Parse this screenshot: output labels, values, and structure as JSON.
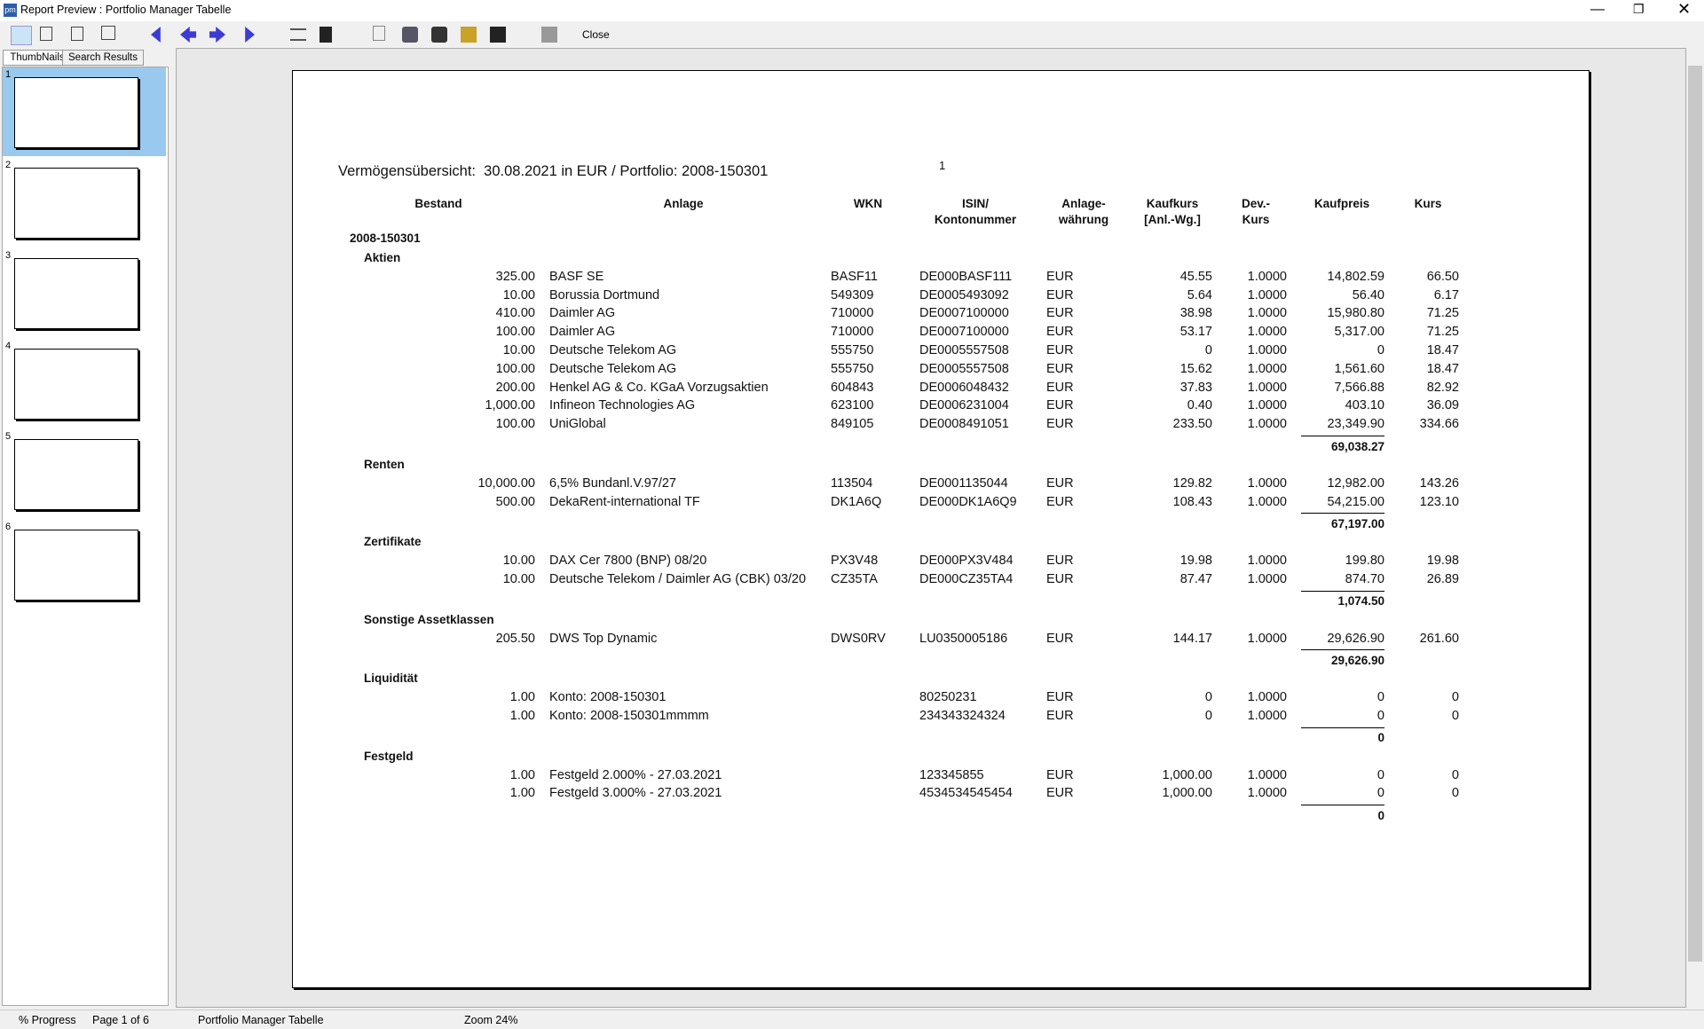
{
  "window": {
    "title": "Report Preview : Portfolio Manager Tabelle"
  },
  "toolbar": {
    "close": "Close"
  },
  "sidebar": {
    "tabs": [
      "ThumbNails",
      "Search Results"
    ],
    "pages": [
      "1",
      "2",
      "3",
      "4",
      "5",
      "6"
    ]
  },
  "report": {
    "title": "Vermögensübersicht:  30.08.2021 in EUR / Portfolio: 2008-150301",
    "page_number": "1",
    "headers": [
      [
        "Bestand"
      ],
      [
        "Anlage"
      ],
      [
        "WKN"
      ],
      [
        "ISIN/",
        "Kontonummer"
      ],
      [
        "Anlage-",
        "währung"
      ],
      [
        "Kaufkurs",
        "[Anl.-Wg.]"
      ],
      [
        "Dev.-",
        "Kurs"
      ],
      [
        "Kaufpreis"
      ],
      [
        "Kurs"
      ]
    ],
    "portfolio": "2008-150301",
    "groups": [
      {
        "name": "Aktien",
        "rows": [
          {
            "bestand": "325.00",
            "anlage": "BASF SE",
            "wkn": "BASF11",
            "isin": "DE000BASF111",
            "waehrung": "EUR",
            "kaufkurs": "45.55",
            "devkurs": "1.0000",
            "kaufpreis": "14,802.59",
            "kurs": "66.50"
          },
          {
            "bestand": "10.00",
            "anlage": "Borussia Dortmund",
            "wkn": "549309",
            "isin": "DE0005493092",
            "waehrung": "EUR",
            "kaufkurs": "5.64",
            "devkurs": "1.0000",
            "kaufpreis": "56.40",
            "kurs": "6.17"
          },
          {
            "bestand": "410.00",
            "anlage": "Daimler AG",
            "wkn": "710000",
            "isin": "DE0007100000",
            "waehrung": "EUR",
            "kaufkurs": "38.98",
            "devkurs": "1.0000",
            "kaufpreis": "15,980.80",
            "kurs": "71.25"
          },
          {
            "bestand": "100.00",
            "anlage": "Daimler AG",
            "wkn": "710000",
            "isin": "DE0007100000",
            "waehrung": "EUR",
            "kaufkurs": "53.17",
            "devkurs": "1.0000",
            "kaufpreis": "5,317.00",
            "kurs": "71.25"
          },
          {
            "bestand": "10.00",
            "anlage": "Deutsche Telekom AG",
            "wkn": "555750",
            "isin": "DE0005557508",
            "waehrung": "EUR",
            "kaufkurs": "0",
            "devkurs": "1.0000",
            "kaufpreis": "0",
            "kurs": "18.47"
          },
          {
            "bestand": "100.00",
            "anlage": "Deutsche Telekom AG",
            "wkn": "555750",
            "isin": "DE0005557508",
            "waehrung": "EUR",
            "kaufkurs": "15.62",
            "devkurs": "1.0000",
            "kaufpreis": "1,561.60",
            "kurs": "18.47"
          },
          {
            "bestand": "200.00",
            "anlage": "Henkel AG & Co. KGaA Vorzugsaktien",
            "wkn": "604843",
            "isin": "DE0006048432",
            "waehrung": "EUR",
            "kaufkurs": "37.83",
            "devkurs": "1.0000",
            "kaufpreis": "7,566.88",
            "kurs": "82.92"
          },
          {
            "bestand": "1,000.00",
            "anlage": "Infineon Technologies AG",
            "wkn": "623100",
            "isin": "DE0006231004",
            "waehrung": "EUR",
            "kaufkurs": "0.40",
            "devkurs": "1.0000",
            "kaufpreis": "403.10",
            "kurs": "36.09"
          },
          {
            "bestand": "100.00",
            "anlage": "UniGlobal",
            "wkn": "849105",
            "isin": "DE0008491051",
            "waehrung": "EUR",
            "kaufkurs": "233.50",
            "devkurs": "1.0000",
            "kaufpreis": "23,349.90",
            "kurs": "334.66"
          }
        ],
        "total": "69,038.27"
      },
      {
        "name": "Renten",
        "rows": [
          {
            "bestand": "10,000.00",
            "anlage": "6,5% Bundanl.V.97/27",
            "wkn": "113504",
            "isin": "DE0001135044",
            "waehrung": "EUR",
            "kaufkurs": "129.82",
            "devkurs": "1.0000",
            "kaufpreis": "12,982.00",
            "kurs": "143.26"
          },
          {
            "bestand": "500.00",
            "anlage": "DekaRent-international TF",
            "wkn": "DK1A6Q",
            "isin": "DE000DK1A6Q9",
            "waehrung": "EUR",
            "kaufkurs": "108.43",
            "devkurs": "1.0000",
            "kaufpreis": "54,215.00",
            "kurs": "123.10"
          }
        ],
        "total": "67,197.00"
      },
      {
        "name": "Zertifikate",
        "rows": [
          {
            "bestand": "10.00",
            "anlage": "DAX Cer 7800 (BNP) 08/20",
            "wkn": "PX3V48",
            "isin": "DE000PX3V484",
            "waehrung": "EUR",
            "kaufkurs": "19.98",
            "devkurs": "1.0000",
            "kaufpreis": "199.80",
            "kurs": "19.98"
          },
          {
            "bestand": "10.00",
            "anlage": "Deutsche Telekom / Daimler AG (CBK) 03/20",
            "wkn": "CZ35TA",
            "isin": "DE000CZ35TA4",
            "waehrung": "EUR",
            "kaufkurs": "87.47",
            "devkurs": "1.0000",
            "kaufpreis": "874.70",
            "kurs": "26.89"
          }
        ],
        "total": "1,074.50"
      },
      {
        "name": "Sonstige Assetklassen",
        "rows": [
          {
            "bestand": "205.50",
            "anlage": "DWS Top Dynamic",
            "wkn": "DWS0RV",
            "isin": "LU0350005186",
            "waehrung": "EUR",
            "kaufkurs": "144.17",
            "devkurs": "1.0000",
            "kaufpreis": "29,626.90",
            "kurs": "261.60"
          }
        ],
        "total": "29,626.90"
      },
      {
        "name": "Liquidität",
        "rows": [
          {
            "bestand": "1.00",
            "anlage": "Konto: 2008-150301",
            "isin": "80250231",
            "waehrung": "EUR",
            "kaufkurs": "0",
            "devkurs": "1.0000",
            "kaufpreis": "0",
            "kurs": "0"
          },
          {
            "bestand": "1.00",
            "anlage": "Konto: 2008-150301mmmm",
            "isin": "234343324324",
            "waehrung": "EUR",
            "kaufkurs": "0",
            "devkurs": "1.0000",
            "kaufpreis": "0",
            "kurs": "0"
          }
        ],
        "total": "0"
      },
      {
        "name": "Festgeld",
        "rows": [
          {
            "bestand": "1.00",
            "anlage": "Festgeld 2.000% - 27.03.2021",
            "isin": "123345855",
            "waehrung": "EUR",
            "kaufkurs": "1,000.00",
            "devkurs": "1.0000",
            "kaufpreis": "0",
            "kurs": "0"
          },
          {
            "bestand": "1.00",
            "anlage": "Festgeld 3.000% - 27.03.2021",
            "isin": "4534534545454",
            "waehrung": "EUR",
            "kaufkurs": "1,000.00",
            "devkurs": "1.0000",
            "kaufpreis": "0",
            "kurs": "0"
          }
        ],
        "total": "0"
      }
    ]
  },
  "status": [
    "% Progress",
    "Page 1 of 6",
    "Portfolio Manager Tabelle",
    "Zoom 24%"
  ]
}
